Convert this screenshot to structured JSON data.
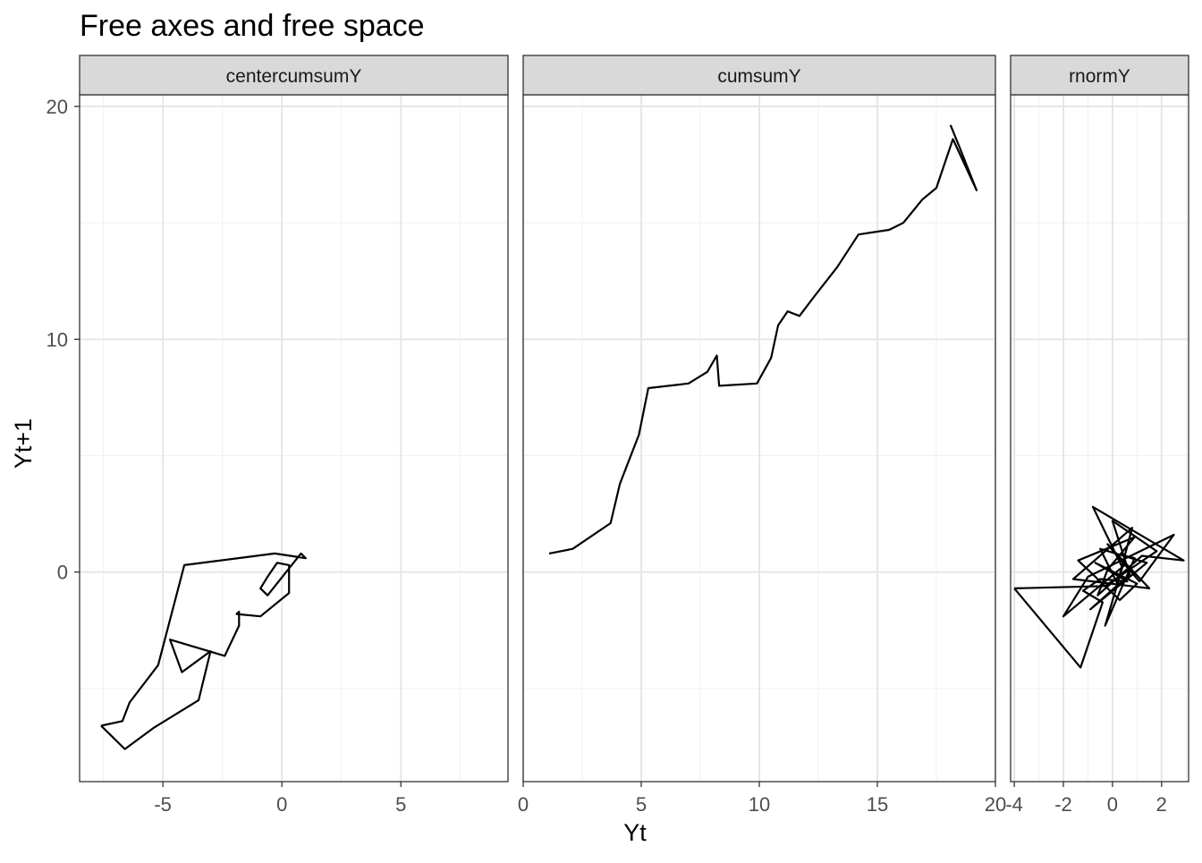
{
  "chart_data": {
    "type": "line",
    "title": "Free axes and free space",
    "xlabel": "Yt",
    "ylabel": "Yt+1",
    "ylim": [
      -9,
      20.5
    ],
    "y_ticks": [
      0,
      10,
      20
    ],
    "grid": true,
    "line_color": "#000000",
    "panels": [
      {
        "label": "centercumsumY",
        "xlim": [
          -8.5,
          9.5
        ],
        "x_ticks": [
          -5,
          0,
          5
        ],
        "points": [
          [
            -7.6,
            -6.6
          ],
          [
            -6.6,
            -7.6
          ],
          [
            -5.4,
            -6.7
          ],
          [
            -3.5,
            -5.5
          ],
          [
            -3.0,
            -3.4
          ],
          [
            -4.2,
            -4.3
          ],
          [
            -4.7,
            -2.9
          ],
          [
            -2.4,
            -3.6
          ],
          [
            -1.8,
            -2.3
          ],
          [
            -1.8,
            -1.7
          ],
          [
            -1.9,
            -1.8
          ],
          [
            -0.9,
            -1.9
          ],
          [
            0.3,
            -0.9
          ],
          [
            0.3,
            0.3
          ],
          [
            -0.2,
            0.4
          ],
          [
            -0.6,
            -0.2
          ],
          [
            -0.9,
            -0.7
          ],
          [
            -0.6,
            -1.0
          ],
          [
            0.8,
            0.8
          ],
          [
            1.0,
            0.6
          ],
          [
            -0.3,
            0.8
          ],
          [
            -4.1,
            0.3
          ],
          [
            -5.2,
            -4.0
          ],
          [
            -6.4,
            -5.6
          ],
          [
            -6.7,
            -6.4
          ],
          [
            -7.6,
            -6.6
          ]
        ]
      },
      {
        "label": "cumsumY",
        "xlim": [
          0,
          20
        ],
        "x_ticks": [
          0,
          5,
          10,
          15,
          20
        ],
        "points": [
          [
            1.1,
            0.8
          ],
          [
            2.1,
            1.0
          ],
          [
            3.7,
            2.1
          ],
          [
            4.1,
            3.8
          ],
          [
            4.9,
            5.9
          ],
          [
            5.3,
            7.9
          ],
          [
            7.0,
            8.1
          ],
          [
            7.8,
            8.6
          ],
          [
            8.2,
            9.3
          ],
          [
            8.3,
            8.0
          ],
          [
            9.9,
            8.1
          ],
          [
            10.5,
            9.2
          ],
          [
            10.8,
            10.6
          ],
          [
            11.2,
            11.2
          ],
          [
            11.7,
            11.0
          ],
          [
            12.3,
            11.8
          ],
          [
            13.3,
            13.1
          ],
          [
            14.2,
            14.5
          ],
          [
            15.5,
            14.7
          ],
          [
            16.1,
            15.0
          ],
          [
            16.9,
            16.0
          ],
          [
            17.5,
            16.5
          ],
          [
            18.2,
            18.6
          ],
          [
            19.2,
            16.4
          ],
          [
            18.5,
            18.2
          ],
          [
            18.1,
            19.2
          ]
        ]
      },
      {
        "label": "rnormY",
        "xlim": [
          -4.15,
          3.1
        ],
        "x_ticks": [
          -4,
          -2,
          0,
          2
        ],
        "points": [
          [
            -4.0,
            -0.7
          ],
          [
            -1.3,
            -4.1
          ],
          [
            -0.4,
            -1.3
          ],
          [
            -1.2,
            -0.8
          ],
          [
            -0.5,
            -0.3
          ],
          [
            0.6,
            -0.4
          ],
          [
            -0.7,
            0.4
          ],
          [
            1.0,
            -0.5
          ],
          [
            0.3,
            -1.2
          ],
          [
            -1.4,
            0.5
          ],
          [
            0.9,
            1.5
          ],
          [
            -0.2,
            0.1
          ],
          [
            -0.6,
            -1.0
          ],
          [
            1.2,
            0.7
          ],
          [
            2.9,
            0.5
          ],
          [
            -0.8,
            2.8
          ],
          [
            0.4,
            0.2
          ],
          [
            -0.3,
            -2.3
          ],
          [
            0.9,
            0.6
          ],
          [
            0.1,
            0.8
          ],
          [
            1.1,
            -0.4
          ],
          [
            2.5,
            1.6
          ],
          [
            -1.0,
            -0.2
          ],
          [
            -2.0,
            -1.9
          ],
          [
            0.5,
            0.3
          ],
          [
            -0.2,
            1.2
          ],
          [
            1.5,
            -0.7
          ],
          [
            -1.6,
            -0.3
          ],
          [
            0.8,
            1.9
          ],
          [
            0.2,
            -0.5
          ],
          [
            -0.5,
            1.0
          ],
          [
            1.4,
            0.4
          ],
          [
            -0.9,
            -1.6
          ],
          [
            0.7,
            -0.1
          ],
          [
            0.0,
            2.2
          ],
          [
            1.8,
            0.9
          ],
          [
            -0.3,
            -0.6
          ],
          [
            -4.0,
            -0.7
          ]
        ]
      }
    ]
  }
}
